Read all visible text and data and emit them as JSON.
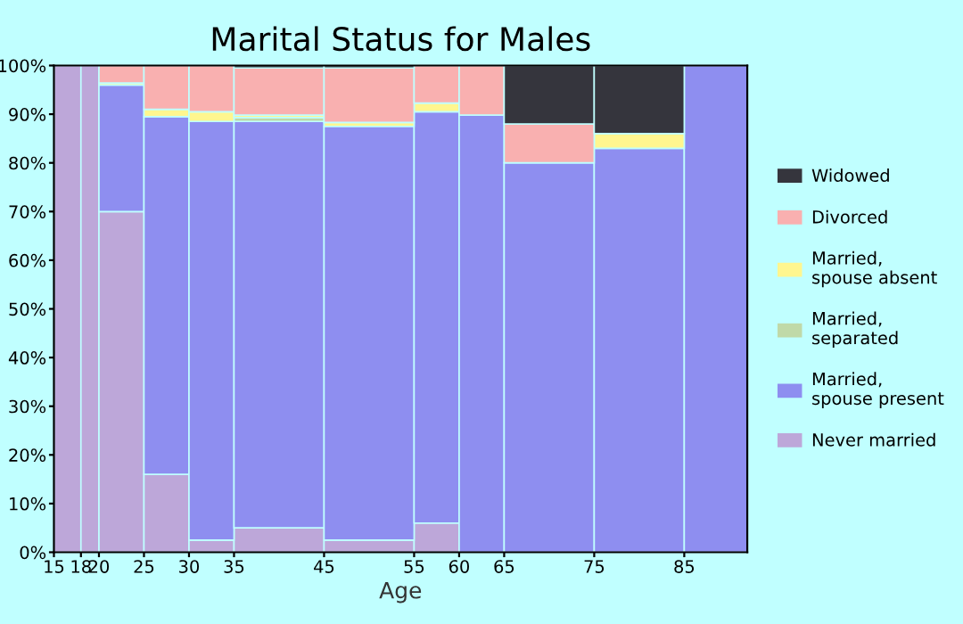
{
  "chart_data": {
    "type": "bar",
    "stacked": true,
    "title": "Marital Status for Males",
    "xlabel": "Age",
    "x": [
      16.5,
      19,
      22.5,
      27.5,
      32.5,
      40,
      50,
      57.5,
      62.5,
      70,
      80,
      88.5
    ],
    "xlim": [
      15,
      92
    ],
    "xticks": [
      15,
      18,
      20,
      25,
      30,
      35,
      45,
      55,
      60,
      65,
      75,
      85
    ],
    "ylim": [
      0,
      100
    ],
    "yticks": [
      {
        "value": 0,
        "label": "0%"
      },
      {
        "value": 10,
        "label": "10%"
      },
      {
        "value": 20,
        "label": "20%"
      },
      {
        "value": 30,
        "label": "30%"
      },
      {
        "value": 40,
        "label": "40%"
      },
      {
        "value": 50,
        "label": "50%"
      },
      {
        "value": 60,
        "label": "60%"
      },
      {
        "value": 70,
        "label": "70%"
      },
      {
        "value": 80,
        "label": "80%"
      },
      {
        "value": 90,
        "label": "90%"
      },
      {
        "value": 100,
        "label": "100%"
      }
    ],
    "legend": "right",
    "grid": false,
    "series": [
      {
        "name": "Never married",
        "color": "#bda7d9",
        "values": [
          100,
          100,
          70,
          16,
          2.5,
          5,
          2.5,
          6,
          null,
          null,
          null,
          null
        ]
      },
      {
        "name": "Married, spouse present",
        "color": "#8e8ef0",
        "values": [
          null,
          null,
          26,
          73.5,
          86,
          83.5,
          85,
          84.5,
          89.8,
          80,
          83,
          100
        ]
      },
      {
        "name": "Married, separated",
        "color": "#c0d9a8",
        "values": [
          null,
          null,
          null,
          null,
          null,
          0.8,
          null,
          null,
          null,
          null,
          null,
          null
        ]
      },
      {
        "name": "Married, spouse absent",
        "color": "#fff68f",
        "values": [
          null,
          null,
          0.4,
          1.5,
          2,
          0.5,
          0.8,
          1.8,
          null,
          null,
          3,
          null
        ]
      },
      {
        "name": "Divorced",
        "color": "#f9b0b0",
        "values": [
          null,
          null,
          3.6,
          9,
          9.5,
          9.7,
          11.2,
          7.7,
          10.2,
          8,
          null,
          null
        ]
      },
      {
        "name": "Widowed",
        "color": "#35353d",
        "values": [
          null,
          null,
          null,
          null,
          null,
          0.5,
          0.5,
          null,
          null,
          12,
          14,
          null
        ]
      }
    ]
  }
}
